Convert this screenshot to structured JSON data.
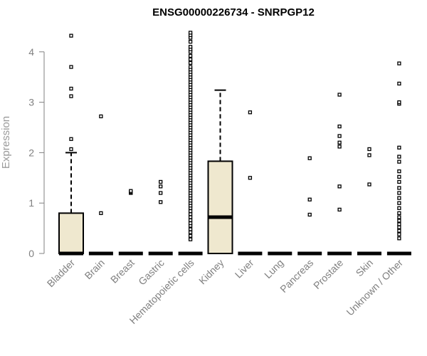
{
  "chart_data": {
    "type": "boxplot",
    "title": "ENSG00000226734 - SNRPGP12",
    "ylabel": "Expression",
    "ylim": [
      0,
      4.4
    ],
    "yticks": [
      0,
      1,
      2,
      3,
      4
    ],
    "box_fill": "#efe8cf",
    "categories": [
      {
        "name": "Bladder",
        "q1": 0,
        "median": 0,
        "q3": 0.8,
        "whisker_low": 0,
        "whisker_high": 2.0,
        "outliers": [
          2.07,
          2.27,
          3.12,
          3.27,
          3.7,
          4.32
        ]
      },
      {
        "name": "Brain",
        "q1": 0,
        "median": 0,
        "q3": 0,
        "whisker_low": 0,
        "whisker_high": 0,
        "outliers": [
          0.8,
          2.72
        ]
      },
      {
        "name": "Breast",
        "q1": 0,
        "median": 0,
        "q3": 0,
        "whisker_low": 0,
        "whisker_high": 0,
        "outliers": [
          1.2,
          1.22,
          1.24
        ]
      },
      {
        "name": "Gastric",
        "q1": 0,
        "median": 0,
        "q3": 0,
        "whisker_low": 0,
        "whisker_high": 0,
        "outliers": [
          1.02,
          1.2,
          1.33,
          1.42
        ]
      },
      {
        "name": "Hematopoietic cells",
        "q1": 0,
        "median": 0,
        "q3": 0,
        "whisker_low": 0,
        "whisker_high": 0,
        "outliers": [
          0.28,
          0.35,
          0.42,
          0.48,
          0.55,
          0.6,
          0.66,
          0.72,
          0.78,
          0.84,
          0.9,
          0.95,
          1.0,
          1.05,
          1.1,
          1.15,
          1.2,
          1.25,
          1.3,
          1.35,
          1.4,
          1.45,
          1.5,
          1.55,
          1.6,
          1.65,
          1.7,
          1.75,
          1.8,
          1.85,
          1.9,
          1.95,
          2.0,
          2.05,
          2.1,
          2.15,
          2.2,
          2.25,
          2.3,
          2.35,
          2.4,
          2.45,
          2.5,
          2.55,
          2.6,
          2.65,
          2.7,
          2.75,
          2.8,
          2.85,
          2.9,
          2.95,
          3.0,
          3.05,
          3.1,
          3.15,
          3.2,
          3.25,
          3.3,
          3.35,
          3.4,
          3.45,
          3.5,
          3.55,
          3.6,
          3.65,
          3.7,
          3.78,
          3.85,
          3.92,
          4.0,
          4.05,
          4.1,
          4.2,
          4.28,
          4.33,
          4.38
        ]
      },
      {
        "name": "Kidney",
        "q1": 0,
        "median": 0.72,
        "q3": 1.83,
        "whisker_low": 0,
        "whisker_high": 3.24,
        "outliers": []
      },
      {
        "name": "Liver",
        "q1": 0,
        "median": 0,
        "q3": 0,
        "whisker_low": 0,
        "whisker_high": 0,
        "outliers": [
          1.5,
          2.8
        ]
      },
      {
        "name": "Lung",
        "q1": 0,
        "median": 0,
        "q3": 0,
        "whisker_low": 0,
        "whisker_high": 0,
        "outliers": []
      },
      {
        "name": "Pancreas",
        "q1": 0,
        "median": 0,
        "q3": 0,
        "whisker_low": 0,
        "whisker_high": 0,
        "outliers": [
          0.77,
          1.07,
          1.89
        ]
      },
      {
        "name": "Prostate",
        "q1": 0,
        "median": 0,
        "q3": 0,
        "whisker_low": 0,
        "whisker_high": 0,
        "outliers": [
          0.87,
          1.33,
          2.12,
          2.2,
          2.33,
          2.52,
          3.15
        ]
      },
      {
        "name": "Skin",
        "q1": 0,
        "median": 0,
        "q3": 0,
        "whisker_low": 0,
        "whisker_high": 0,
        "outliers": [
          1.37,
          1.95,
          2.07
        ]
      },
      {
        "name": "Unknown / Other",
        "q1": 0,
        "median": 0,
        "q3": 0,
        "whisker_low": 0,
        "whisker_high": 0,
        "outliers": [
          0.3,
          0.38,
          0.45,
          0.52,
          0.58,
          0.65,
          0.72,
          0.8,
          0.9,
          1.0,
          1.1,
          1.2,
          1.3,
          1.42,
          1.52,
          1.63,
          1.82,
          1.92,
          2.1,
          2.97,
          3.0,
          3.37,
          3.77
        ]
      }
    ]
  }
}
